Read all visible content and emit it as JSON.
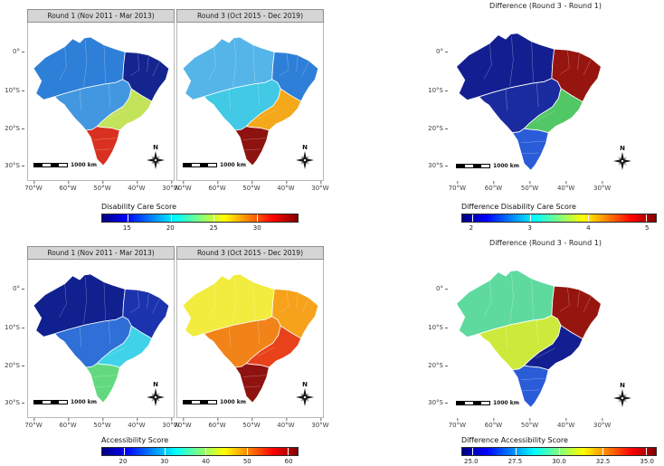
{
  "figure": {
    "panels": {
      "dis_r1": {
        "header": "Round 1 (Nov 2011 - Mar 2013)"
      },
      "dis_r3": {
        "header": "Round 3 (Oct 2015 - Dec 2019)"
      },
      "dis_diff": {
        "title": "Difference (Round 3 - Round 1)"
      },
      "acc_r1": {
        "header": "Round 1 (Nov 2011 - Mar 2013)"
      },
      "acc_r3": {
        "header": "Round 3 (Oct 2015 - Dec 2019)"
      },
      "acc_diff": {
        "title": "Difference (Round 3 - Round 1)"
      }
    }
  },
  "axes": {
    "lat_ticks": [
      "0°",
      "10°S",
      "20°S",
      "30°S"
    ],
    "lon_ticks": [
      "70°W",
      "60°W",
      "50°W",
      "40°W",
      "30°W"
    ]
  },
  "map_elements": {
    "scalebar_label": "1000 km",
    "north_label": "N"
  },
  "colorbars": [
    {
      "label": "Disability Care Score",
      "ticks": [
        {
          "v": "15",
          "p": 13
        },
        {
          "v": "20",
          "p": 35
        },
        {
          "v": "25",
          "p": 57
        },
        {
          "v": "30",
          "p": 79
        }
      ]
    },
    {
      "label": "Difference Disability Care Score",
      "ticks": [
        {
          "v": "2",
          "p": 5
        },
        {
          "v": "3",
          "p": 35
        },
        {
          "v": "4",
          "p": 65
        },
        {
          "v": "5",
          "p": 95
        }
      ]
    },
    {
      "label": "Accessibility Score",
      "ticks": [
        {
          "v": "20",
          "p": 11
        },
        {
          "v": "30",
          "p": 32
        },
        {
          "v": "40",
          "p": 53
        },
        {
          "v": "50",
          "p": 74
        },
        {
          "v": "60",
          "p": 95
        }
      ]
    },
    {
      "label": "Difference Accessibility Score",
      "ticks": [
        {
          "v": "25.0",
          "p": 5
        },
        {
          "v": "27.5",
          "p": 27.5
        },
        {
          "v": "30.0",
          "p": 50
        },
        {
          "v": "32.5",
          "p": 72.5
        },
        {
          "v": "35.0",
          "p": 95
        }
      ]
    }
  ],
  "region_colors": {
    "dis_r1": {
      "North": "#2e7fd8",
      "Northeast": "#15258f",
      "Central-West": "#4397e0",
      "Southeast": "#c3e35a",
      "South": "#d93121"
    },
    "dis_r3": {
      "North": "#55b5e9",
      "Northeast": "#2e7fd8",
      "Central-West": "#41c9e6",
      "Southeast": "#f5a81a",
      "South": "#8e1310"
    },
    "dis_diff": {
      "North": "#131f90",
      "Northeast": "#96150e",
      "Central-West": "#1a2ba0",
      "Southeast": "#52c765",
      "South": "#2a5cd8"
    },
    "acc_r1": {
      "North": "#10208f",
      "Northeast": "#1b33ad",
      "Central-West": "#2e6fd8",
      "Southeast": "#3fd2e8",
      "South": "#62d97e"
    },
    "acc_r3": {
      "North": "#f1ec3d",
      "Northeast": "#f6a21b",
      "Central-West": "#f28318",
      "Southeast": "#e8421a",
      "South": "#8e1310"
    },
    "acc_diff": {
      "North": "#5eda9f",
      "Northeast": "#96150e",
      "Central-West": "#cdea3c",
      "Southeast": "#131f90",
      "South": "#2a5cd8"
    }
  },
  "chart_data": [
    {
      "type": "choropleth_map",
      "country": "Brazil",
      "measure": "Disability Care Score",
      "panel": "Round 1 (Nov 2011 - Mar 2013)",
      "regions": [
        "North",
        "Northeast",
        "Central-West",
        "Southeast",
        "South"
      ],
      "values": [
        17,
        14,
        18,
        25,
        31
      ],
      "values_estimated_from_colors": true,
      "scale_ticks": [
        15,
        20,
        25,
        30
      ],
      "colormap": "jet"
    },
    {
      "type": "choropleth_map",
      "country": "Brazil",
      "measure": "Disability Care Score",
      "panel": "Round 3 (Oct 2015 - Dec 2019)",
      "regions": [
        "North",
        "Northeast",
        "Central-West",
        "Southeast",
        "South"
      ],
      "values": [
        20,
        18,
        21,
        28,
        33
      ],
      "values_estimated_from_colors": true,
      "scale_ticks": [
        15,
        20,
        25,
        30
      ],
      "colormap": "jet"
    },
    {
      "type": "choropleth_map",
      "country": "Brazil",
      "measure": "Difference Disability Care Score",
      "panel": "Difference (Round 3 - Round 1)",
      "regions": [
        "North",
        "Northeast",
        "Central-West",
        "Southeast",
        "South"
      ],
      "values": [
        2.1,
        5.0,
        2.2,
        3.6,
        2.8
      ],
      "values_estimated_from_colors": true,
      "scale_ticks": [
        2,
        3,
        4,
        5
      ],
      "colormap": "jet"
    },
    {
      "type": "choropleth_map",
      "country": "Brazil",
      "measure": "Accessibility Score",
      "panel": "Round 1 (Nov 2011 - Mar 2013)",
      "regions": [
        "North",
        "Northeast",
        "Central-West",
        "Southeast",
        "South"
      ],
      "values": [
        18,
        21,
        27,
        37,
        45
      ],
      "values_estimated_from_colors": true,
      "scale_ticks": [
        20,
        30,
        40,
        50,
        60
      ],
      "colormap": "jet"
    },
    {
      "type": "choropleth_map",
      "country": "Brazil",
      "measure": "Accessibility Score",
      "panel": "Round 3 (Oct 2015 - Dec 2019)",
      "regions": [
        "North",
        "Northeast",
        "Central-West",
        "Southeast",
        "South"
      ],
      "values": [
        50,
        55,
        58,
        61,
        66
      ],
      "values_estimated_from_colors": true,
      "scale_ticks": [
        20,
        30,
        40,
        50,
        60
      ],
      "colormap": "jet"
    },
    {
      "type": "choropleth_map",
      "country": "Brazil",
      "measure": "Difference Accessibility Score",
      "panel": "Difference (Round 3 - Round 1)",
      "regions": [
        "North",
        "Northeast",
        "Central-West",
        "Southeast",
        "South"
      ],
      "values": [
        31.5,
        36,
        33,
        25.5,
        27
      ],
      "values_estimated_from_colors": true,
      "scale_ticks": [
        25.0,
        27.5,
        30.0,
        32.5,
        35.0
      ],
      "colormap": "jet"
    }
  ]
}
